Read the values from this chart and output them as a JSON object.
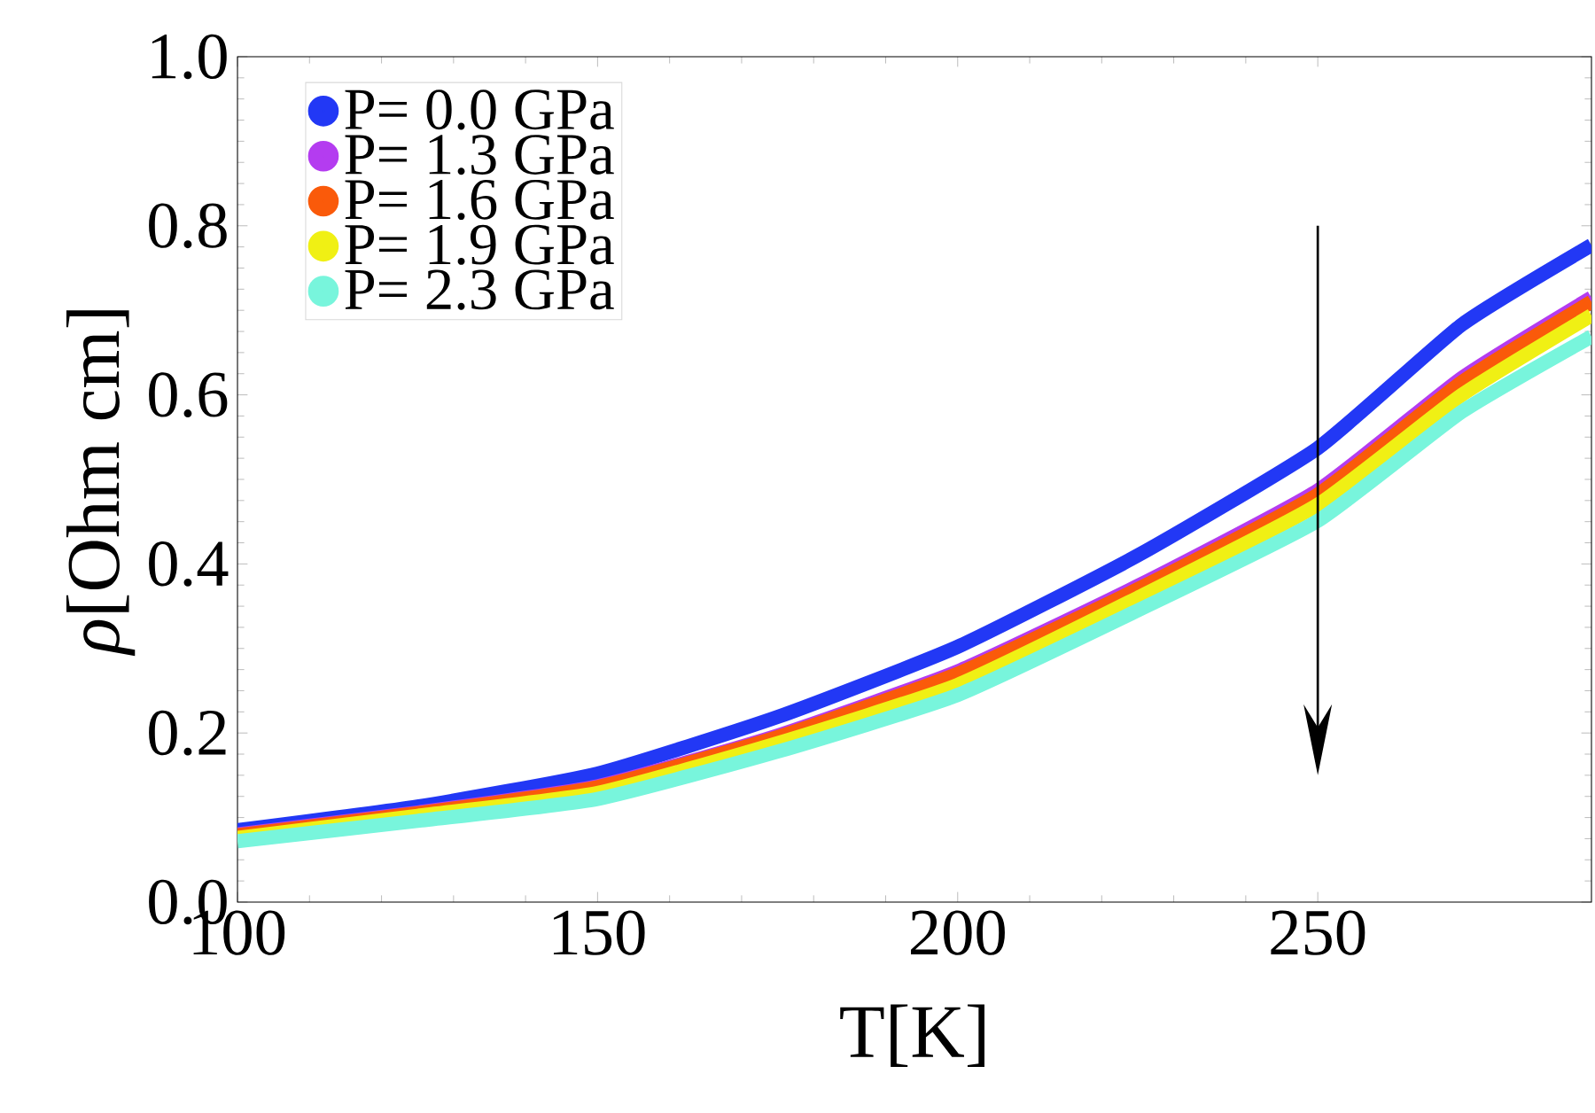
{
  "chart_data": {
    "type": "line",
    "xlabel": "T[K]",
    "ylabel": "*ρ*[Ohm cm]",
    "x": [
      100,
      125,
      150,
      175,
      200,
      225,
      250,
      270,
      288
    ],
    "series": [
      {
        "name": "P= 0.0 GPa",
        "color": "#2238f5",
        "values": [
          0.085,
          0.113,
          0.152,
          0.219,
          0.302,
          0.41,
          0.537,
          0.683,
          0.777
        ]
      },
      {
        "name": "P= 1.3 GPa",
        "color": "#b43cf0",
        "values": [
          0.08,
          0.106,
          0.137,
          0.197,
          0.273,
          0.374,
          0.487,
          0.62,
          0.715
        ]
      },
      {
        "name": "P= 1.6 GPa",
        "color": "#fa5a0a",
        "values": [
          0.079,
          0.105,
          0.136,
          0.195,
          0.27,
          0.37,
          0.482,
          0.615,
          0.71
        ]
      },
      {
        "name": "P= 1.9 GPa",
        "color": "#f0f014",
        "values": [
          0.076,
          0.102,
          0.129,
          0.188,
          0.257,
          0.36,
          0.47,
          0.6,
          0.694
        ]
      },
      {
        "name": "P= 2.3 GPa",
        "color": "#78f5dc",
        "values": [
          0.072,
          0.096,
          0.122,
          0.178,
          0.245,
          0.345,
          0.451,
          0.58,
          0.669
        ]
      }
    ],
    "xlim": [
      100,
      288
    ],
    "ylim": [
      0,
      1.0
    ],
    "xticks": [
      100,
      150,
      200,
      250
    ],
    "yticks": [
      {
        "value": 0,
        "label": "0.0"
      },
      0.2,
      0.4,
      0.6,
      0.8,
      {
        "value": 1.0,
        "label": "1.0"
      }
    ],
    "legend": "top left"
  }
}
